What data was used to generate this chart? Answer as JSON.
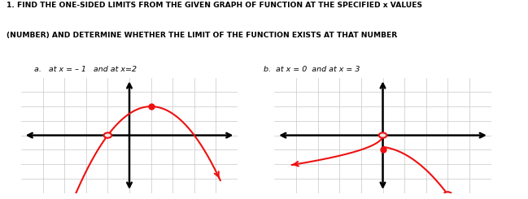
{
  "title_line1": "1. FIND THE ONE-SIDED LIMITS FROM THE GIVEN GRAPH OF FUNCTION AT THE SPECIFIED x VALUES",
  "title_line2": "(NUMBER) AND DETERMINE WHETHER THE LIMIT OF THE FUNCTION EXISTS AT THAT NUMBER",
  "label_a": "a.   at x = – 1   and at x=2",
  "label_b": "b.  at x = 0  and at x = 3",
  "curve_color": "#ee1111",
  "grid_color": "#c8c8c8",
  "axis_color": "#000000",
  "bg_color": "#ffffff",
  "graph_bg": "#e8e8e8"
}
